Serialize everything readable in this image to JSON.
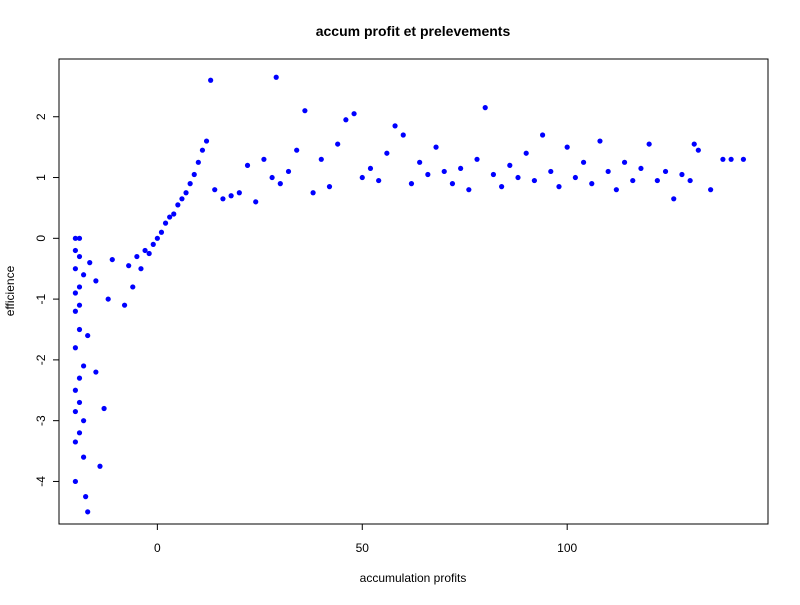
{
  "chart_data": {
    "type": "scatter",
    "title": "accum profit et prelevements",
    "xlabel": "accumulation profits",
    "ylabel": "efficience",
    "xlim": [
      -24,
      149
    ],
    "ylim": [
      -4.7,
      2.95
    ],
    "x_ticks": [
      0,
      50,
      100
    ],
    "y_ticks": [
      -4,
      -3,
      -2,
      -1,
      0,
      1,
      2
    ],
    "x_tick_labels": [
      "0",
      "50",
      "100"
    ],
    "y_tick_labels": [
      "-4",
      "-3",
      "-2",
      "-1",
      "0",
      "1",
      "2"
    ],
    "grid": false,
    "legend": "none",
    "point_color": "#0000ff",
    "series": [
      {
        "x": [
          -20,
          -20,
          -20,
          -20,
          -20,
          -20,
          -20,
          -20,
          -20,
          -20,
          -19,
          -19,
          -19,
          -19,
          -19,
          -19,
          -19,
          -19,
          -18,
          -18,
          -18,
          -18,
          -17.5,
          -17,
          -17,
          -16.5,
          -15,
          -15,
          -14,
          -13,
          -12,
          -11,
          -8,
          -7,
          -6,
          -5,
          -4,
          -3,
          -2,
          -1,
          0,
          1,
          2,
          3,
          4,
          5,
          6,
          7,
          8,
          9,
          10,
          11,
          12,
          13,
          14,
          16,
          18,
          20,
          22,
          24,
          26,
          28,
          29,
          30,
          32,
          34,
          36,
          38,
          40,
          42,
          44,
          46,
          48,
          50,
          52,
          54,
          56,
          58,
          60,
          62,
          64,
          66,
          68,
          70,
          72,
          74,
          76,
          78,
          80,
          82,
          84,
          86,
          88,
          90,
          92,
          94,
          96,
          98,
          100,
          102,
          104,
          106,
          108,
          110,
          112,
          114,
          116,
          118,
          120,
          122,
          124,
          126,
          128,
          130,
          131,
          132,
          135,
          138,
          140,
          143
        ],
        "y": [
          -4.0,
          -3.35,
          -2.85,
          -2.5,
          -1.8,
          -1.2,
          -0.5,
          -0.2,
          0.0,
          -0.9,
          -3.2,
          -2.7,
          -2.3,
          -1.5,
          -0.8,
          -0.3,
          0.0,
          -1.1,
          -3.6,
          -3.0,
          -2.1,
          -0.6,
          -4.25,
          -4.5,
          -1.6,
          -0.4,
          -2.2,
          -0.7,
          -3.75,
          -2.8,
          -1.0,
          -0.35,
          -1.1,
          -0.45,
          -0.8,
          -0.3,
          -0.5,
          -0.2,
          -0.25,
          -0.1,
          0.0,
          0.1,
          0.25,
          0.35,
          0.4,
          0.55,
          0.65,
          0.75,
          0.9,
          1.05,
          1.25,
          1.45,
          1.6,
          2.6,
          0.8,
          0.65,
          0.7,
          0.75,
          1.2,
          0.6,
          1.3,
          1.0,
          2.65,
          0.9,
          1.1,
          1.45,
          2.1,
          0.75,
          1.3,
          0.85,
          1.55,
          1.95,
          2.05,
          1.0,
          1.15,
          0.95,
          1.4,
          1.85,
          1.7,
          0.9,
          1.25,
          1.05,
          1.5,
          1.1,
          0.9,
          1.15,
          0.8,
          1.3,
          2.15,
          1.05,
          0.85,
          1.2,
          1.0,
          1.4,
          0.95,
          1.7,
          1.1,
          0.85,
          1.5,
          1.0,
          1.25,
          0.9,
          1.6,
          1.1,
          0.8,
          1.25,
          0.95,
          1.15,
          1.55,
          0.95,
          1.1,
          0.65,
          1.05,
          0.95,
          1.55,
          1.45,
          0.8,
          1.3,
          1.3,
          1.3
        ]
      }
    ]
  }
}
